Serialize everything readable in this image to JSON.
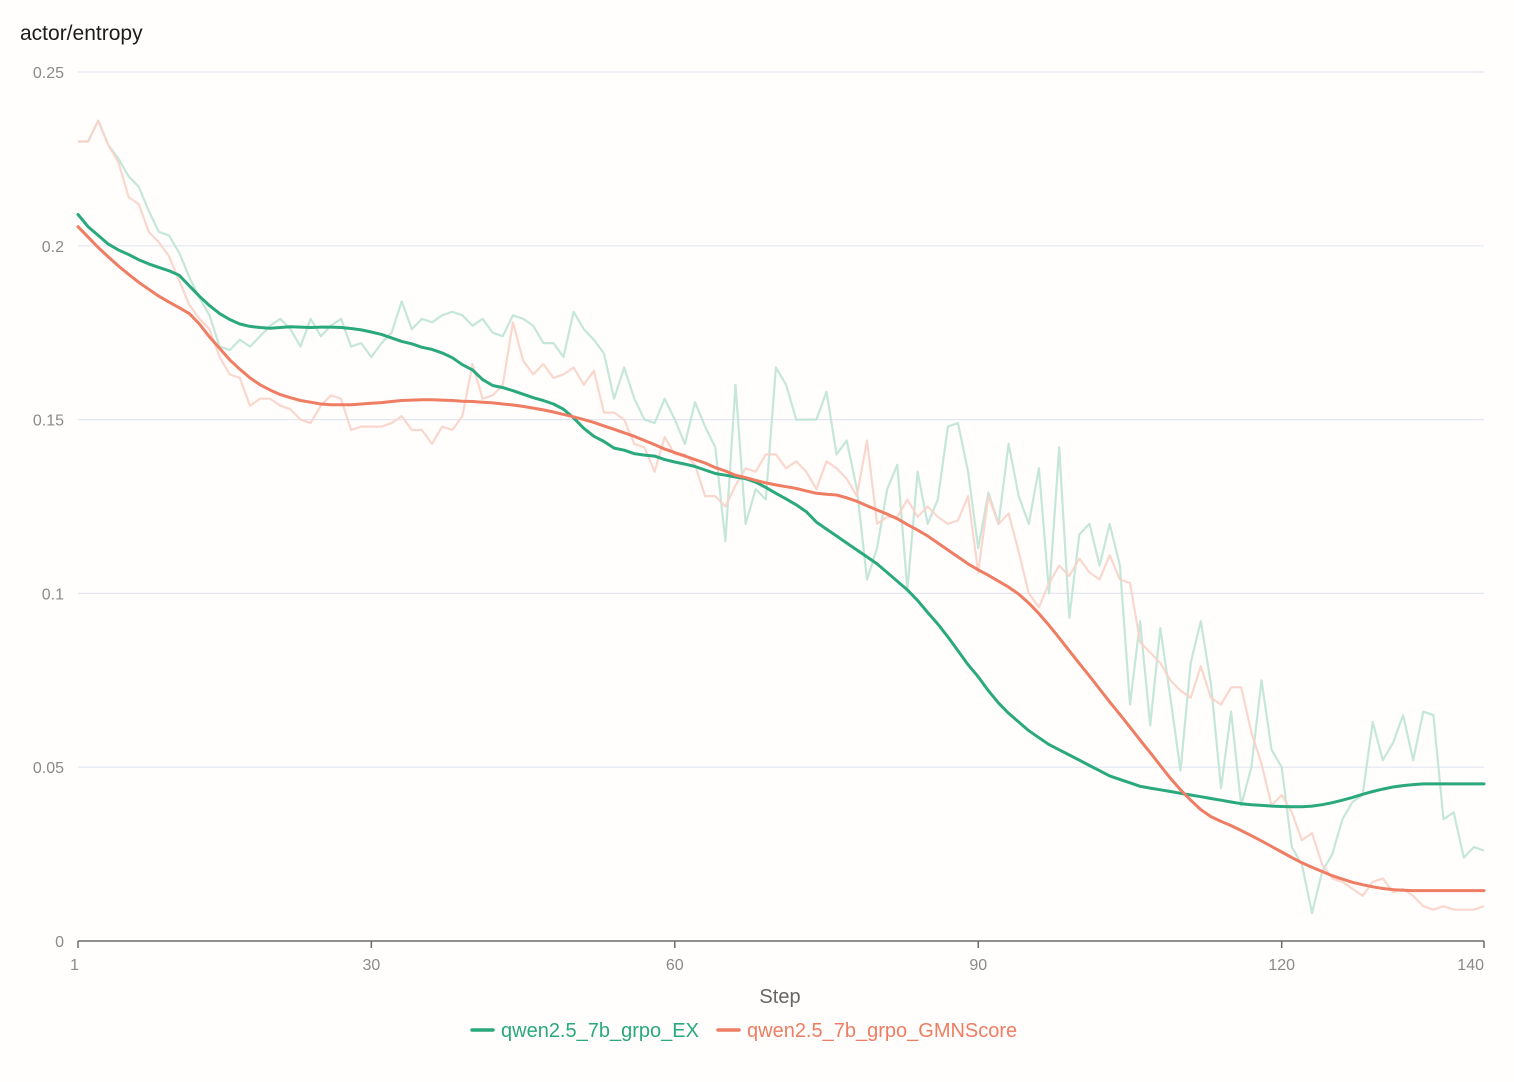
{
  "chart_data": {
    "type": "line",
    "title": "actor/entropy",
    "xlabel": "Step",
    "ylabel": "",
    "xlim": [
      1,
      140
    ],
    "ylim": [
      0,
      0.25
    ],
    "xticks": [
      1,
      30,
      60,
      90,
      120,
      140
    ],
    "xtick_labels": [
      "1",
      "30",
      "60",
      "90",
      "120",
      "140"
    ],
    "yticks": [
      0,
      0.05,
      0.1,
      0.15,
      0.2,
      0.25
    ],
    "ytick_labels": [
      "0",
      "0.05",
      "0.1",
      "0.15",
      "0.2",
      "0.25"
    ],
    "grid": true,
    "legend_position": "bottom-center",
    "x": [
      1,
      2,
      3,
      4,
      5,
      6,
      7,
      8,
      9,
      10,
      11,
      12,
      13,
      14,
      15,
      16,
      17,
      18,
      19,
      20,
      21,
      22,
      23,
      24,
      25,
      26,
      27,
      28,
      29,
      30,
      31,
      32,
      33,
      34,
      35,
      36,
      37,
      38,
      39,
      40,
      41,
      42,
      43,
      44,
      45,
      46,
      47,
      48,
      49,
      50,
      51,
      52,
      53,
      54,
      55,
      56,
      57,
      58,
      59,
      60,
      61,
      62,
      63,
      64,
      65,
      66,
      67,
      68,
      69,
      70,
      71,
      72,
      73,
      74,
      75,
      76,
      77,
      78,
      79,
      80,
      81,
      82,
      83,
      84,
      85,
      86,
      87,
      88,
      89,
      90,
      91,
      92,
      93,
      94,
      95,
      96,
      97,
      98,
      99,
      100,
      101,
      102,
      103,
      104,
      105,
      106,
      107,
      108,
      109,
      110,
      111,
      112,
      113,
      114,
      115,
      116,
      117,
      118,
      119,
      120,
      121,
      122,
      123,
      124,
      125,
      126,
      127,
      128,
      129,
      130,
      131,
      132,
      133,
      134,
      135,
      136,
      137,
      138,
      139,
      140
    ],
    "series": [
      {
        "name": "qwen2.5_7b_grpo_EX",
        "color": "#2aa87e",
        "raw_color": "#bfe4d6",
        "smoothed": [
          0.209,
          0.2055,
          0.203,
          0.2005,
          0.1988,
          0.1975,
          0.196,
          0.1948,
          0.1938,
          0.1928,
          0.1915,
          0.1885,
          0.1855,
          0.1828,
          0.1805,
          0.1788,
          0.1775,
          0.1768,
          0.1765,
          0.1763,
          0.1765,
          0.1767,
          0.1766,
          0.1765,
          0.1766,
          0.1766,
          0.1765,
          0.1762,
          0.1758,
          0.1752,
          0.1745,
          0.1735,
          0.1725,
          0.1718,
          0.1708,
          0.1702,
          0.1692,
          0.1678,
          0.1658,
          0.1643,
          0.1615,
          0.1598,
          0.1592,
          0.1583,
          0.1573,
          0.1563,
          0.1555,
          0.1545,
          0.153,
          0.1505,
          0.1475,
          0.1452,
          0.1437,
          0.1418,
          0.1412,
          0.1402,
          0.1398,
          0.1395,
          0.1385,
          0.1378,
          0.1372,
          0.1365,
          0.1355,
          0.1345,
          0.134,
          0.1335,
          0.133,
          0.132,
          0.1305,
          0.1288,
          0.1272,
          0.1255,
          0.1235,
          0.1205,
          0.1185,
          0.1165,
          0.1145,
          0.1125,
          0.1105,
          0.1085,
          0.106,
          0.1035,
          0.101,
          0.098,
          0.0945,
          0.0912,
          0.0875,
          0.0835,
          0.0795,
          0.076,
          0.072,
          0.0685,
          0.0655,
          0.063,
          0.0605,
          0.0585,
          0.0565,
          0.055,
          0.0535,
          0.052,
          0.0505,
          0.049,
          0.0475,
          0.0465,
          0.0455,
          0.0445,
          0.044,
          0.0435,
          0.043,
          0.0425,
          0.042,
          0.0415,
          0.041,
          0.0405,
          0.04,
          0.0395,
          0.0392,
          0.039,
          0.0388,
          0.0387,
          0.0386,
          0.0386,
          0.0388,
          0.0392,
          0.0398,
          0.0405,
          0.0413,
          0.0422,
          0.043,
          0.0437,
          0.0443,
          0.0447,
          0.045,
          0.0452,
          0.0452,
          0.0452,
          0.0452,
          0.0452,
          0.0452,
          0.0452
        ],
        "raw": [
          0.23,
          0.23,
          0.236,
          0.229,
          0.225,
          0.22,
          0.217,
          0.21,
          0.204,
          0.203,
          0.198,
          0.191,
          0.185,
          0.18,
          0.171,
          0.17,
          0.173,
          0.171,
          0.174,
          0.177,
          0.179,
          0.176,
          0.171,
          0.179,
          0.174,
          0.177,
          0.179,
          0.171,
          0.172,
          0.168,
          0.172,
          0.175,
          0.184,
          0.176,
          0.179,
          0.178,
          0.18,
          0.181,
          0.18,
          0.177,
          0.179,
          0.175,
          0.174,
          0.18,
          0.179,
          0.177,
          0.172,
          0.172,
          0.168,
          0.181,
          0.176,
          0.173,
          0.169,
          0.156,
          0.165,
          0.156,
          0.15,
          0.149,
          0.156,
          0.15,
          0.143,
          0.155,
          0.148,
          0.142,
          0.115,
          0.16,
          0.12,
          0.13,
          0.127,
          0.165,
          0.16,
          0.15,
          0.15,
          0.15,
          0.158,
          0.14,
          0.144,
          0.13,
          0.104,
          0.113,
          0.13,
          0.137,
          0.101,
          0.135,
          0.12,
          0.127,
          0.148,
          0.149,
          0.135,
          0.113,
          0.129,
          0.12,
          0.143,
          0.128,
          0.12,
          0.136,
          0.1,
          0.142,
          0.093,
          0.117,
          0.12,
          0.108,
          0.12,
          0.108,
          0.068,
          0.092,
          0.062,
          0.09,
          0.07,
          0.049,
          0.08,
          0.092,
          0.074,
          0.044,
          0.066,
          0.039,
          0.05,
          0.075,
          0.055,
          0.05,
          0.027,
          0.022,
          0.008,
          0.02,
          0.025,
          0.035,
          0.04,
          0.042,
          0.063,
          0.052,
          0.057,
          0.065,
          0.052,
          0.066,
          0.065,
          0.035,
          0.037,
          0.024,
          0.027,
          0.026
        ]
      },
      {
        "name": "qwen2.5_7b_grpo_GMNScore",
        "color": "#ee7d63",
        "raw_color": "#f9d3c9",
        "smoothed": [
          0.2055,
          0.2025,
          0.1995,
          0.1968,
          0.1942,
          0.1918,
          0.1895,
          0.1875,
          0.1855,
          0.1838,
          0.1822,
          0.1805,
          0.1775,
          0.1738,
          0.1705,
          0.1672,
          0.1645,
          0.162,
          0.16,
          0.1585,
          0.1572,
          0.1563,
          0.1555,
          0.155,
          0.1545,
          0.1543,
          0.1543,
          0.1543,
          0.1545,
          0.1547,
          0.1549,
          0.1552,
          0.1555,
          0.1556,
          0.1557,
          0.1557,
          0.1556,
          0.1555,
          0.1553,
          0.1552,
          0.155,
          0.1548,
          0.1545,
          0.1542,
          0.1538,
          0.1533,
          0.1528,
          0.1522,
          0.1515,
          0.1508,
          0.15,
          0.1492,
          0.1482,
          0.1472,
          0.1462,
          0.1452,
          0.144,
          0.1428,
          0.1415,
          0.1405,
          0.1395,
          0.1385,
          0.1375,
          0.1362,
          0.1352,
          0.134,
          0.1333,
          0.1325,
          0.1318,
          0.1312,
          0.1307,
          0.1302,
          0.1295,
          0.1288,
          0.1285,
          0.1283,
          0.1275,
          0.1265,
          0.1252,
          0.124,
          0.1228,
          0.1215,
          0.1198,
          0.1182,
          0.1165,
          0.1145,
          0.1125,
          0.1105,
          0.1085,
          0.1068,
          0.1052,
          0.1035,
          0.1018,
          0.0998,
          0.0972,
          0.0942,
          0.0908,
          0.0872,
          0.0835,
          0.0798,
          0.0762,
          0.0725,
          0.0688,
          0.0652,
          0.0615,
          0.0578,
          0.0542,
          0.0505,
          0.0468,
          0.0435,
          0.0405,
          0.0378,
          0.0358,
          0.0344,
          0.0332,
          0.0318,
          0.0303,
          0.0288,
          0.0272,
          0.0256,
          0.024,
          0.0225,
          0.0212,
          0.02,
          0.0188,
          0.0178,
          0.0169,
          0.0162,
          0.0156,
          0.0151,
          0.0148,
          0.0146,
          0.0145,
          0.0145,
          0.0145,
          0.0145,
          0.0145,
          0.0145,
          0.0145,
          0.0145
        ],
        "raw": [
          0.23,
          0.23,
          0.236,
          0.229,
          0.224,
          0.214,
          0.212,
          0.204,
          0.201,
          0.197,
          0.19,
          0.183,
          0.179,
          0.176,
          0.168,
          0.163,
          0.162,
          0.154,
          0.156,
          0.156,
          0.154,
          0.153,
          0.15,
          0.149,
          0.154,
          0.157,
          0.156,
          0.147,
          0.148,
          0.148,
          0.148,
          0.149,
          0.151,
          0.147,
          0.147,
          0.143,
          0.148,
          0.147,
          0.151,
          0.166,
          0.156,
          0.157,
          0.16,
          0.178,
          0.167,
          0.163,
          0.166,
          0.162,
          0.163,
          0.165,
          0.16,
          0.164,
          0.152,
          0.152,
          0.15,
          0.143,
          0.142,
          0.135,
          0.145,
          0.14,
          0.14,
          0.137,
          0.128,
          0.128,
          0.125,
          0.131,
          0.136,
          0.135,
          0.14,
          0.14,
          0.136,
          0.138,
          0.135,
          0.13,
          0.138,
          0.136,
          0.133,
          0.128,
          0.144,
          0.12,
          0.122,
          0.122,
          0.127,
          0.122,
          0.125,
          0.122,
          0.12,
          0.121,
          0.128,
          0.106,
          0.128,
          0.12,
          0.123,
          0.112,
          0.1,
          0.096,
          0.103,
          0.108,
          0.105,
          0.11,
          0.106,
          0.104,
          0.111,
          0.104,
          0.103,
          0.086,
          0.083,
          0.08,
          0.075,
          0.072,
          0.07,
          0.079,
          0.07,
          0.068,
          0.073,
          0.073,
          0.06,
          0.051,
          0.039,
          0.042,
          0.037,
          0.029,
          0.031,
          0.022,
          0.018,
          0.017,
          0.015,
          0.013,
          0.017,
          0.018,
          0.014,
          0.015,
          0.013,
          0.01,
          0.009,
          0.01,
          0.009,
          0.009,
          0.009,
          0.01
        ]
      }
    ]
  }
}
